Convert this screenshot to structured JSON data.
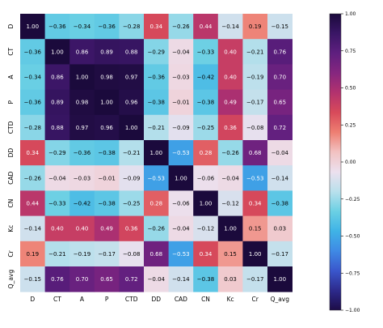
{
  "chart_data": {
    "type": "heatmap",
    "title": "",
    "xlabel": "",
    "ylabel": "",
    "labels": [
      "D",
      "CT",
      "A",
      "P",
      "CTD",
      "DD",
      "CAD",
      "CN",
      "Kc",
      "Cr",
      "Q_avg"
    ],
    "matrix": [
      [
        1.0,
        -0.36,
        -0.34,
        -0.36,
        -0.28,
        0.34,
        -0.26,
        0.44,
        -0.14,
        0.19,
        -0.15
      ],
      [
        -0.36,
        1.0,
        0.86,
        0.89,
        0.88,
        -0.29,
        -0.04,
        -0.33,
        0.4,
        -0.21,
        0.76
      ],
      [
        -0.34,
        0.86,
        1.0,
        0.98,
        0.97,
        -0.36,
        -0.03,
        -0.42,
        0.4,
        -0.19,
        0.7
      ],
      [
        -0.36,
        0.89,
        0.98,
        1.0,
        0.96,
        -0.38,
        -0.01,
        -0.38,
        0.49,
        -0.17,
        0.65
      ],
      [
        -0.28,
        0.88,
        0.97,
        0.96,
        1.0,
        -0.21,
        -0.09,
        -0.25,
        0.36,
        -0.08,
        0.72
      ],
      [
        0.34,
        -0.29,
        -0.36,
        -0.38,
        -0.21,
        1.0,
        -0.53,
        0.28,
        -0.26,
        0.68,
        -0.04
      ],
      [
        -0.26,
        -0.04,
        -0.03,
        -0.01,
        -0.09,
        -0.53,
        1.0,
        -0.06,
        -0.04,
        -0.53,
        -0.14
      ],
      [
        0.44,
        -0.33,
        -0.42,
        -0.38,
        -0.25,
        0.28,
        -0.06,
        1.0,
        -0.12,
        0.34,
        -0.38
      ],
      [
        -0.14,
        0.4,
        0.4,
        0.49,
        0.36,
        -0.26,
        -0.04,
        -0.12,
        1.0,
        0.15,
        0.03
      ],
      [
        0.19,
        -0.21,
        -0.19,
        -0.17,
        -0.08,
        0.68,
        -0.53,
        0.34,
        0.15,
        1.0,
        -0.17
      ],
      [
        -0.15,
        0.76,
        0.7,
        0.65,
        0.72,
        -0.04,
        -0.14,
        -0.38,
        0.03,
        -0.17,
        1.0
      ]
    ],
    "vmin": -1.0,
    "vmax": 1.0,
    "colormap": [
      "#1b0a3c",
      "#3a1666",
      "#5f1f7f",
      "#86267f",
      "#b3326e",
      "#d84a5a",
      "#ee7f72",
      "#f2c2c2",
      "#ece0ee",
      "#b9e0ec",
      "#6bd0e4",
      "#3fb3e6",
      "#3f8ae5",
      "#3a57cc",
      "#2d2a8c",
      "#1d0c47"
    ],
    "colorbar_ticks": [
      "1.00",
      "0.75",
      "0.50",
      "0.25",
      "0.00",
      "−0.25",
      "−0.50",
      "−0.75",
      "−1.00"
    ]
  }
}
